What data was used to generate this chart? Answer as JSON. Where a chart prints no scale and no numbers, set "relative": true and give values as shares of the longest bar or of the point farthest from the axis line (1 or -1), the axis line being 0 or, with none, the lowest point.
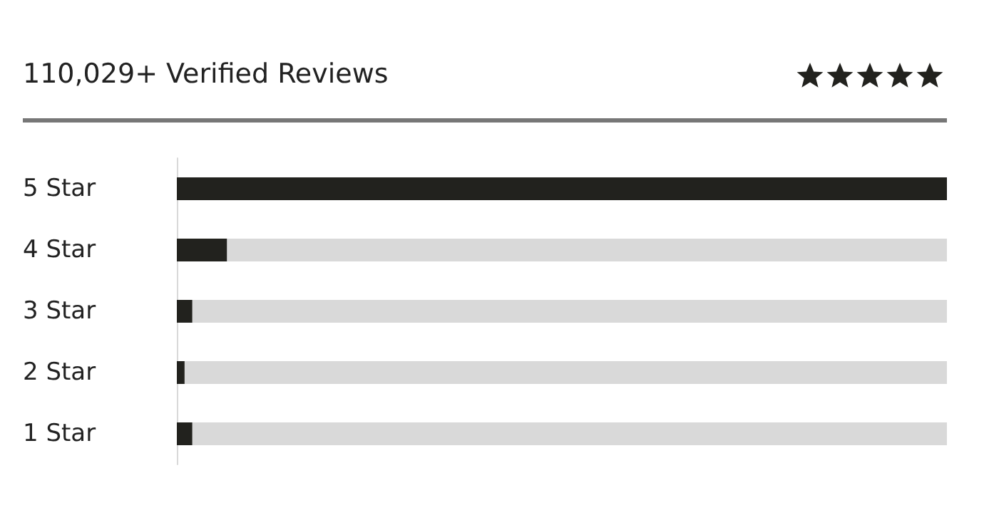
{
  "chart_data": {
    "type": "bar",
    "orientation": "horizontal",
    "relative": true,
    "title": "110,029+ Verified Reviews",
    "categories": [
      "5 Star",
      "4 Star",
      "3 Star",
      "2 Star",
      "1 Star"
    ],
    "values": [
      1,
      0.065,
      0.02,
      0.01,
      0.02
    ],
    "color": "#22221e"
  }
}
